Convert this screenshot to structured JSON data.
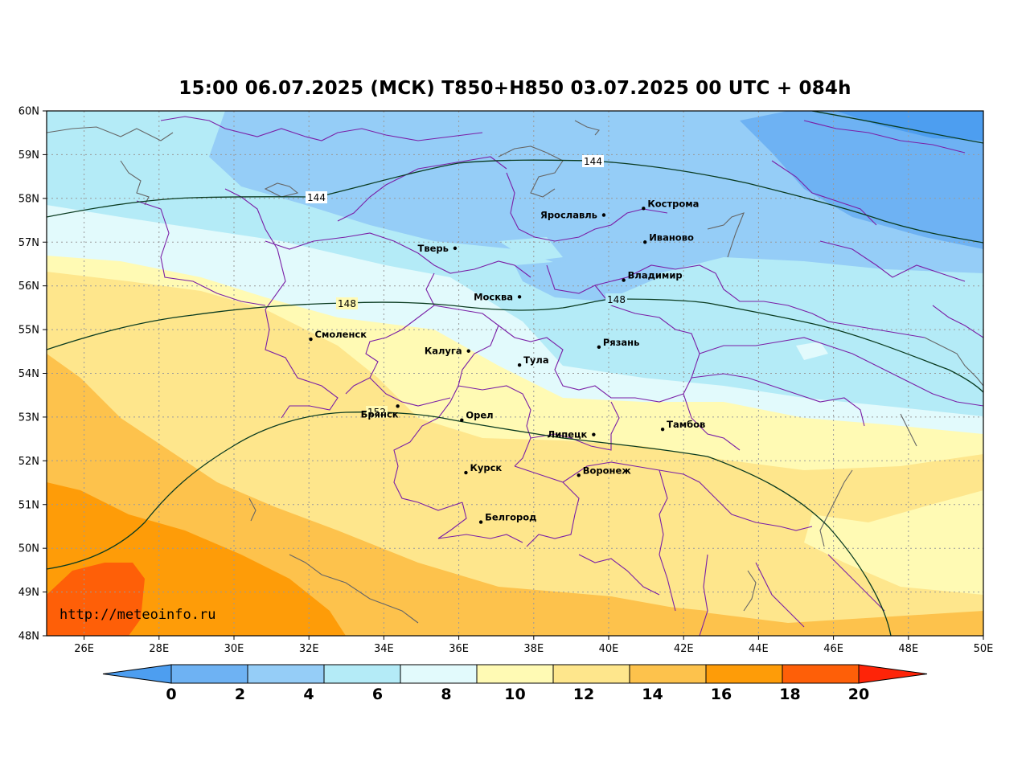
{
  "title": "15:00 06.07.2025 (МСК) T850+H850 03.07.2025 00 UTC + 084h",
  "watermark": "http://meteoinfo.ru",
  "lat_labels": [
    "60N",
    "59N",
    "58N",
    "57N",
    "56N",
    "55N",
    "54N",
    "53N",
    "52N",
    "51N",
    "50N",
    "49N",
    "48N"
  ],
  "lon_labels": [
    "26E",
    "28E",
    "30E",
    "32E",
    "34E",
    "36E",
    "38E",
    "40E",
    "42E",
    "44E",
    "46E",
    "48E",
    "50E"
  ],
  "cities": [
    {
      "name": "Ярославль",
      "lon": 39.87,
      "lat": 57.62
    },
    {
      "name": "Кострома",
      "lon": 40.93,
      "lat": 57.77
    },
    {
      "name": "Иваново",
      "lon": 40.97,
      "lat": 57.0
    },
    {
      "name": "Тверь",
      "lon": 35.9,
      "lat": 56.86
    },
    {
      "name": "Владимир",
      "lon": 40.4,
      "lat": 56.13
    },
    {
      "name": "Москва",
      "lon": 37.62,
      "lat": 55.75
    },
    {
      "name": "Смоленск",
      "lon": 32.05,
      "lat": 54.78
    },
    {
      "name": "Калуга",
      "lon": 36.26,
      "lat": 54.51
    },
    {
      "name": "Рязань",
      "lon": 39.74,
      "lat": 54.6
    },
    {
      "name": "Тула",
      "lon": 37.62,
      "lat": 54.19
    },
    {
      "name": "Брянск",
      "lon": 34.37,
      "lat": 53.25
    },
    {
      "name": "Орел",
      "lon": 36.08,
      "lat": 52.93
    },
    {
      "name": "Липецк",
      "lon": 39.6,
      "lat": 52.6
    },
    {
      "name": "Тамбов",
      "lon": 41.44,
      "lat": 52.72
    },
    {
      "name": "Курск",
      "lon": 36.19,
      "lat": 51.73
    },
    {
      "name": "Воронеж",
      "lon": 39.2,
      "lat": 51.67
    },
    {
      "name": "Белгород",
      "lon": 36.59,
      "lat": 50.6
    }
  ],
  "contour_labels": [
    "144",
    "144",
    "148",
    "148",
    "152"
  ],
  "colorbar": {
    "ticks": [
      "0",
      "2",
      "4",
      "6",
      "8",
      "10",
      "12",
      "14",
      "16",
      "18",
      "20"
    ],
    "colors": [
      "#4d9ef0",
      "#6eb2f3",
      "#95cdf7",
      "#b4ebf7",
      "#e2fafc",
      "#fffab4",
      "#fee68c",
      "#fdc24c",
      "#fe9c08",
      "#fe5f08",
      "#fe2408"
    ]
  }
}
